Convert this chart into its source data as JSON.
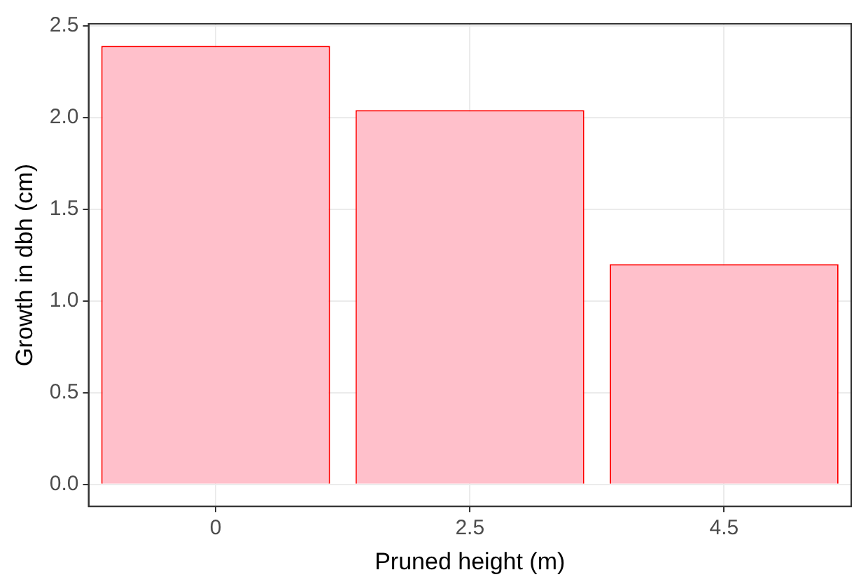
{
  "chart_data": {
    "type": "bar",
    "xlabel": "Pruned height (m)",
    "ylabel": "Growth in dbh (cm)",
    "categories": [
      "0",
      "2.5",
      "4.5"
    ],
    "values": [
      2.39,
      2.04,
      1.2
    ],
    "color": "#ffc0cb",
    "ylim": [
      -0.12,
      2.51
    ],
    "yticks": [
      {
        "value": 0,
        "label": "0.0"
      },
      0.5,
      {
        "value": 1,
        "label": "1.0"
      },
      1.5,
      {
        "value": 2,
        "label": "2.0"
      },
      2.5
    ],
    "grid": true
  }
}
